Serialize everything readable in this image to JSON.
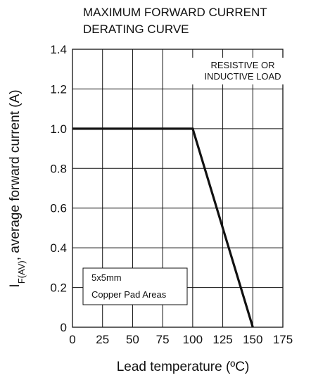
{
  "chart_data": {
    "type": "line",
    "title_lines": [
      "MAXIMUM FORWARD CURRENT",
      "DERATING CURVE"
    ],
    "xlabel": "Lead temperature (ºC)",
    "ylabel": {
      "prefix": "I",
      "subscript": "F(AV)",
      "rest": ", average forward current (A)"
    },
    "xlim": [
      0,
      175
    ],
    "ylim": [
      0,
      1.4
    ],
    "x_ticks": [
      0,
      25,
      50,
      75,
      100,
      125,
      150,
      175
    ],
    "x_tick_labels": [
      "0",
      "25",
      "50",
      "75",
      "100",
      "125",
      "150",
      "175"
    ],
    "y_ticks": [
      0,
      0.2,
      0.4,
      0.6,
      0.8,
      1.0,
      1.2,
      1.4
    ],
    "y_tick_labels": [
      "0",
      "0.2",
      "0.4",
      "0.6",
      "0.8",
      "1.0",
      "1.2",
      "1.4"
    ],
    "grid": true,
    "series": [
      {
        "x": [
          0,
          100,
          150
        ],
        "y": [
          1.0,
          1.0,
          0
        ]
      }
    ],
    "annotations": {
      "load_note": [
        "RESISTIVE OR",
        "INDUCTIVE LOAD"
      ],
      "pad_note": [
        "5x5mm",
        "Copper Pad Areas"
      ]
    }
  }
}
